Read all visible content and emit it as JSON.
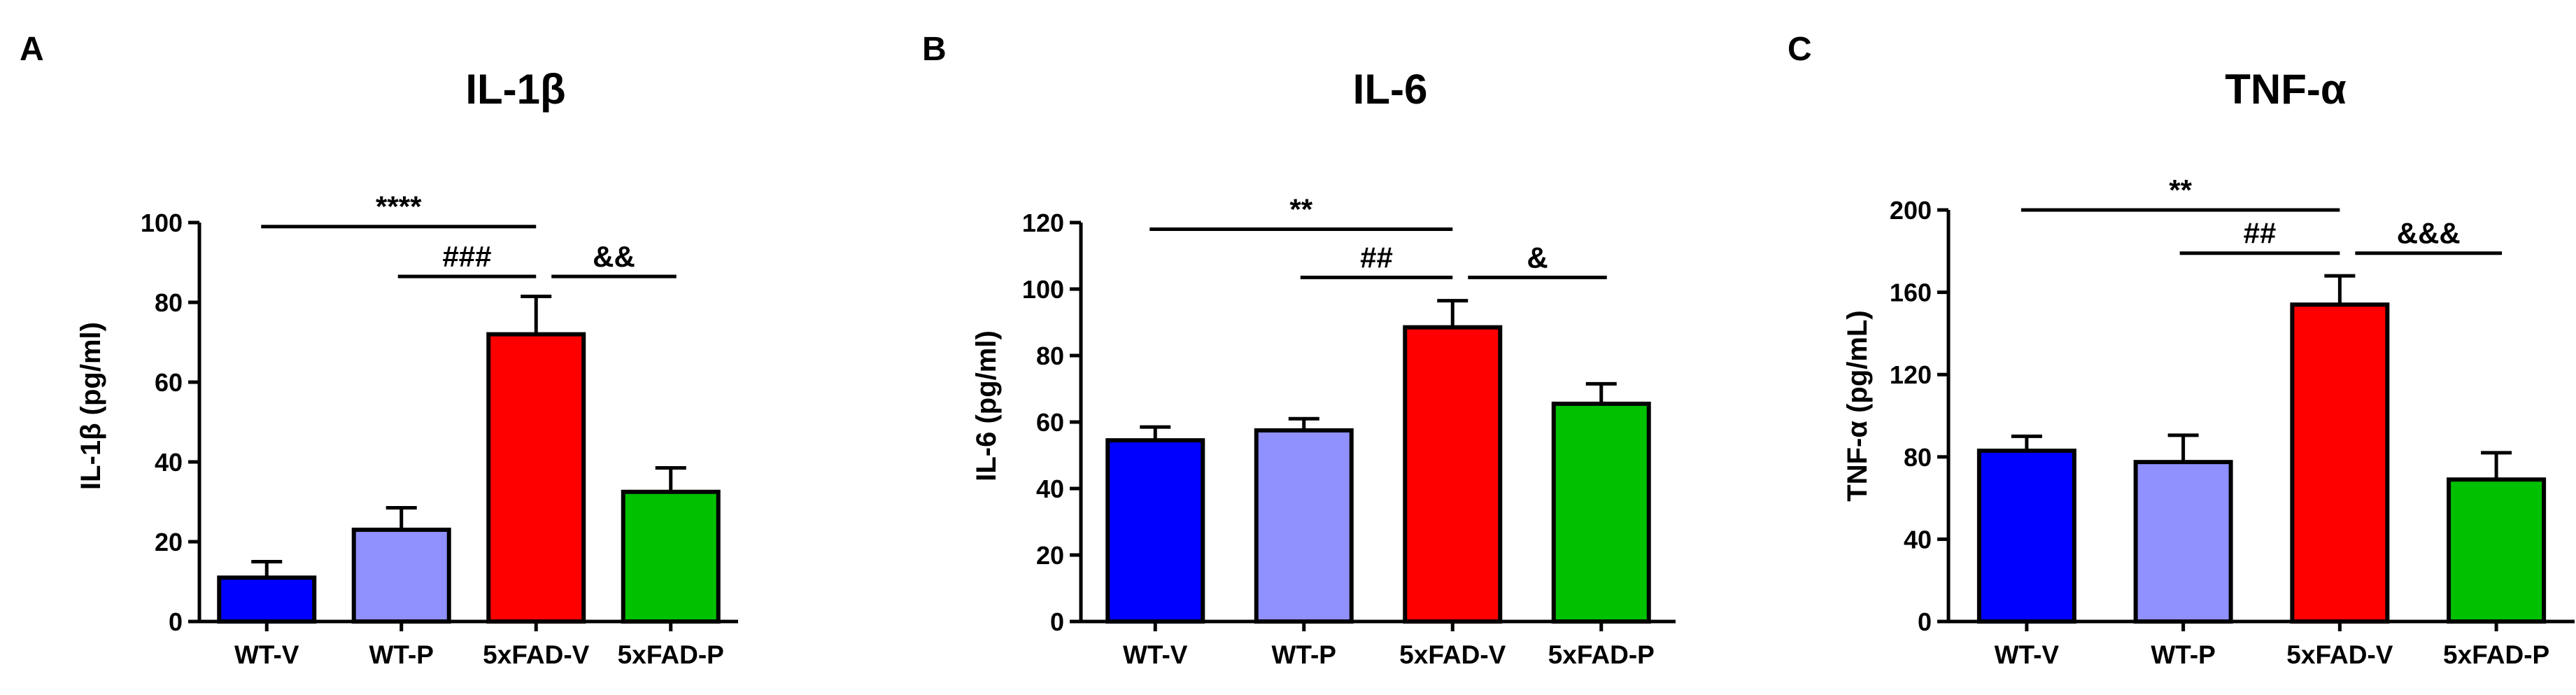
{
  "figure": {
    "panels": [
      "A",
      "B",
      "C"
    ]
  },
  "colors": {
    "WT-V": "#0000ff",
    "WT-P": "#9090ff",
    "5xFAD-V": "#ff0000",
    "5xFAD-P": "#00c000",
    "ink": "#000000"
  },
  "chart_data": [
    {
      "type": "bar",
      "panel": "A",
      "title": "IL-1β",
      "ylabel": "IL-1β (pg/ml)",
      "xlabel": "",
      "categories": [
        "WT-V",
        "WT-P",
        "5xFAD-V",
        "5xFAD-P"
      ],
      "values": [
        11,
        23,
        72,
        32.5
      ],
      "errors": [
        4,
        5.5,
        9.5,
        6
      ],
      "ylim": [
        0,
        100
      ],
      "yticks": [
        0,
        20,
        40,
        60,
        80,
        100
      ],
      "significance": [
        {
          "label": "****",
          "from": 0,
          "to": 2,
          "y": 99
        },
        {
          "label": "###",
          "from": 1,
          "to": 2,
          "y": 86.5
        },
        {
          "label": "&&",
          "from": 2,
          "to": 3,
          "y": 86.5
        }
      ]
    },
    {
      "type": "bar",
      "panel": "B",
      "title": "IL-6",
      "ylabel": "IL-6 (pg/ml)",
      "xlabel": "",
      "categories": [
        "WT-V",
        "WT-P",
        "5xFAD-V",
        "5xFAD-P"
      ],
      "values": [
        54.5,
        57.5,
        88.5,
        65.5
      ],
      "errors": [
        4,
        3.5,
        8,
        6
      ],
      "ylim": [
        0,
        120
      ],
      "yticks": [
        0,
        20,
        40,
        60,
        80,
        100,
        120
      ],
      "significance": [
        {
          "label": "**",
          "from": 0,
          "to": 2,
          "y": 118
        },
        {
          "label": "##",
          "from": 1,
          "to": 2,
          "y": 103.5
        },
        {
          "label": "&",
          "from": 2,
          "to": 3,
          "y": 103.5
        }
      ]
    },
    {
      "type": "bar",
      "panel": "C",
      "title": "TNF-α",
      "ylabel": "TNF-α (pg/mL)",
      "xlabel": "",
      "categories": [
        "WT-V",
        "WT-P",
        "5xFAD-V",
        "5xFAD-P"
      ],
      "values": [
        83,
        77.5,
        154,
        69
      ],
      "errors": [
        7,
        13,
        14,
        13
      ],
      "ylim": [
        0,
        200
      ],
      "yticks": [
        0,
        40,
        80,
        120,
        160,
        200
      ],
      "significance": [
        {
          "label": "**",
          "from": 0,
          "to": 2,
          "y": 200
        },
        {
          "label": "##",
          "from": 1,
          "to": 2,
          "y": 179
        },
        {
          "label": "&&&",
          "from": 2,
          "to": 3,
          "y": 179
        }
      ]
    }
  ]
}
